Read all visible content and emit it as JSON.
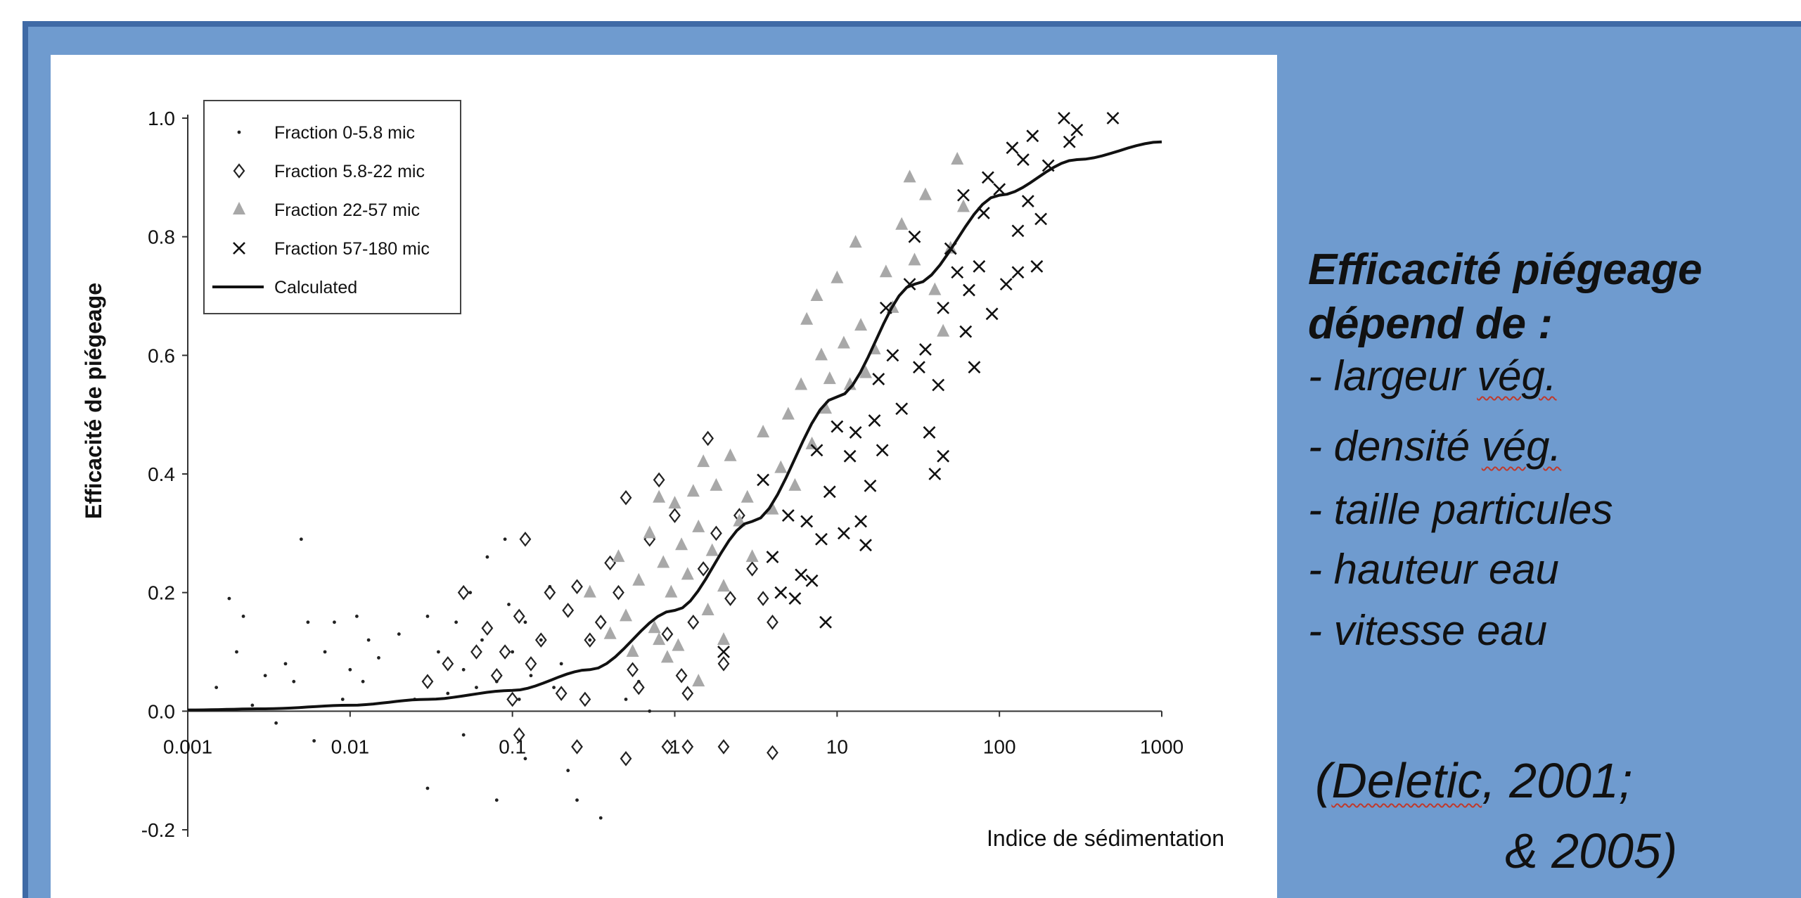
{
  "slide": {
    "heading_line1": "Efficacité piégeage",
    "heading_line2": "dépend de :",
    "bullets": [
      {
        "prefix": " - ",
        "word": "largeur",
        "marked": "vég."
      },
      {
        "prefix": " - ",
        "word": "densité",
        "marked": "vég."
      },
      {
        "prefix": " - ",
        "word": "taille particules",
        "marked": ""
      },
      {
        "prefix": " - ",
        "word": "hauteur eau",
        "marked": ""
      },
      {
        "prefix": " - ",
        "word": "vitesse eau",
        "marked": ""
      }
    ],
    "citation_open": "(",
    "citation_author": "Deletic",
    "citation_rest": ", 2001;",
    "citation_line2": "& 2005)",
    "spellcheck_color": "#c0392b",
    "background_color": "#6f9bcf",
    "frame_color": "#3f6aa6"
  },
  "chart_data": {
    "type": "scatter",
    "xlabel": "Indice de sédimentation",
    "ylabel": "Efficacité de piégeage",
    "xscale": "log",
    "xlim": [
      0.001,
      1000
    ],
    "ylim": [
      -0.2,
      1.0
    ],
    "xticks": [
      "0.001",
      "0.01",
      "0.1",
      "1",
      "10",
      "100",
      "1000"
    ],
    "yticks": [
      "-0.2",
      "0.0",
      "0.2",
      "0.4",
      "0.6",
      "0.8",
      "1.0"
    ],
    "grid": false,
    "legend_position": "top-left",
    "series": [
      {
        "name": "Fraction 0-5.8 mic",
        "marker": "dot",
        "color": "#222222",
        "points": [
          [
            0.0015,
            0.04
          ],
          [
            0.0018,
            0.19
          ],
          [
            0.002,
            0.1
          ],
          [
            0.0022,
            0.16
          ],
          [
            0.0025,
            0.01
          ],
          [
            0.003,
            0.06
          ],
          [
            0.0035,
            -0.02
          ],
          [
            0.004,
            0.08
          ],
          [
            0.0045,
            0.05
          ],
          [
            0.005,
            0.29
          ],
          [
            0.0055,
            0.15
          ],
          [
            0.006,
            -0.05
          ],
          [
            0.007,
            0.1
          ],
          [
            0.008,
            0.15
          ],
          [
            0.009,
            0.02
          ],
          [
            0.01,
            0.07
          ],
          [
            0.011,
            0.16
          ],
          [
            0.012,
            0.05
          ],
          [
            0.013,
            0.12
          ],
          [
            0.015,
            0.09
          ],
          [
            0.02,
            0.13
          ],
          [
            0.025,
            0.02
          ],
          [
            0.03,
            0.16
          ],
          [
            0.035,
            0.1
          ],
          [
            0.04,
            0.03
          ],
          [
            0.045,
            0.15
          ],
          [
            0.05,
            0.07
          ],
          [
            0.055,
            0.2
          ],
          [
            0.06,
            0.04
          ],
          [
            0.065,
            0.12
          ],
          [
            0.07,
            0.26
          ],
          [
            0.08,
            0.05
          ],
          [
            0.09,
            0.29
          ],
          [
            0.095,
            0.18
          ],
          [
            0.1,
            0.1
          ],
          [
            0.11,
            0.02
          ],
          [
            0.12,
            0.15
          ],
          [
            0.13,
            0.06
          ],
          [
            0.15,
            0.12
          ],
          [
            0.17,
            0.21
          ],
          [
            0.2,
            0.08
          ],
          [
            0.22,
            -0.1
          ],
          [
            0.25,
            -0.15
          ],
          [
            0.3,
            0.12
          ],
          [
            0.35,
            -0.18
          ],
          [
            0.5,
            0.02
          ],
          [
            0.6,
            0.05
          ],
          [
            0.7,
            0.0
          ],
          [
            0.03,
            -0.13
          ],
          [
            0.05,
            -0.04
          ],
          [
            0.08,
            -0.15
          ],
          [
            0.12,
            -0.08
          ],
          [
            0.18,
            0.04
          ]
        ]
      },
      {
        "name": "Fraction 5.8-22 mic",
        "marker": "diamond",
        "color": "#222222",
        "points": [
          [
            0.03,
            0.05
          ],
          [
            0.04,
            0.08
          ],
          [
            0.05,
            0.2
          ],
          [
            0.06,
            0.1
          ],
          [
            0.07,
            0.14
          ],
          [
            0.08,
            0.06
          ],
          [
            0.09,
            0.1
          ],
          [
            0.1,
            0.02
          ],
          [
            0.11,
            0.16
          ],
          [
            0.12,
            0.29
          ],
          [
            0.13,
            0.08
          ],
          [
            0.15,
            0.12
          ],
          [
            0.17,
            0.2
          ],
          [
            0.2,
            0.03
          ],
          [
            0.22,
            0.17
          ],
          [
            0.25,
            0.21
          ],
          [
            0.28,
            0.02
          ],
          [
            0.3,
            0.12
          ],
          [
            0.35,
            0.15
          ],
          [
            0.4,
            0.25
          ],
          [
            0.45,
            0.2
          ],
          [
            0.5,
            0.36
          ],
          [
            0.55,
            0.07
          ],
          [
            0.6,
            0.04
          ],
          [
            0.7,
            0.29
          ],
          [
            0.8,
            0.39
          ],
          [
            0.9,
            0.13
          ],
          [
            1.0,
            0.33
          ],
          [
            1.1,
            0.06
          ],
          [
            1.2,
            0.03
          ],
          [
            1.3,
            0.15
          ],
          [
            1.5,
            0.24
          ],
          [
            1.6,
            0.46
          ],
          [
            1.8,
            0.3
          ],
          [
            2.0,
            0.08
          ],
          [
            2.2,
            0.19
          ],
          [
            2.5,
            0.33
          ],
          [
            3.0,
            0.24
          ],
          [
            3.5,
            0.19
          ],
          [
            4.0,
            0.15
          ],
          [
            0.25,
            -0.06
          ],
          [
            0.5,
            -0.08
          ],
          [
            0.9,
            -0.06
          ],
          [
            1.2,
            -0.06
          ],
          [
            2.0,
            -0.06
          ],
          [
            4.0,
            -0.07
          ],
          [
            0.11,
            -0.04
          ]
        ]
      },
      {
        "name": "Fraction 22-57 mic",
        "marker": "triangle",
        "color": "#a8a8a8",
        "points": [
          [
            0.3,
            0.2
          ],
          [
            0.4,
            0.13
          ],
          [
            0.45,
            0.26
          ],
          [
            0.5,
            0.16
          ],
          [
            0.55,
            0.1
          ],
          [
            0.6,
            0.22
          ],
          [
            0.7,
            0.3
          ],
          [
            0.75,
            0.14
          ],
          [
            0.8,
            0.12
          ],
          [
            0.85,
            0.25
          ],
          [
            0.9,
            0.09
          ],
          [
            0.95,
            0.2
          ],
          [
            1.0,
            0.35
          ],
          [
            1.05,
            0.11
          ],
          [
            1.1,
            0.28
          ],
          [
            1.2,
            0.23
          ],
          [
            1.3,
            0.37
          ],
          [
            1.4,
            0.31
          ],
          [
            1.5,
            0.42
          ],
          [
            1.6,
            0.17
          ],
          [
            1.7,
            0.27
          ],
          [
            1.8,
            0.38
          ],
          [
            2.0,
            0.21
          ],
          [
            2.2,
            0.43
          ],
          [
            2.5,
            0.32
          ],
          [
            2.8,
            0.36
          ],
          [
            3.0,
            0.26
          ],
          [
            3.5,
            0.47
          ],
          [
            4.0,
            0.34
          ],
          [
            4.5,
            0.41
          ],
          [
            5.0,
            0.5
          ],
          [
            5.5,
            0.38
          ],
          [
            6.0,
            0.55
          ],
          [
            6.5,
            0.66
          ],
          [
            7.0,
            0.45
          ],
          [
            7.5,
            0.7
          ],
          [
            8.0,
            0.6
          ],
          [
            8.5,
            0.51
          ],
          [
            9.0,
            0.56
          ],
          [
            10.0,
            0.73
          ],
          [
            11.0,
            0.62
          ],
          [
            12.0,
            0.55
          ],
          [
            13.0,
            0.79
          ],
          [
            14.0,
            0.65
          ],
          [
            15.0,
            0.57
          ],
          [
            17.0,
            0.61
          ],
          [
            20.0,
            0.74
          ],
          [
            22.0,
            0.68
          ],
          [
            25.0,
            0.82
          ],
          [
            28.0,
            0.9
          ],
          [
            30.0,
            0.76
          ],
          [
            35.0,
            0.87
          ],
          [
            40.0,
            0.71
          ],
          [
            45.0,
            0.64
          ],
          [
            50.0,
            0.78
          ],
          [
            55.0,
            0.93
          ],
          [
            60.0,
            0.85
          ],
          [
            2.0,
            0.12
          ],
          [
            1.4,
            0.05
          ],
          [
            0.8,
            0.36
          ]
        ]
      },
      {
        "name": "Fraction 57-180 mic",
        "marker": "x",
        "color": "#111111",
        "points": [
          [
            2.0,
            0.1
          ],
          [
            3.5,
            0.39
          ],
          [
            4.0,
            0.26
          ],
          [
            4.5,
            0.2
          ],
          [
            5.0,
            0.33
          ],
          [
            5.5,
            0.19
          ],
          [
            6.0,
            0.23
          ],
          [
            6.5,
            0.32
          ],
          [
            7.0,
            0.22
          ],
          [
            7.5,
            0.44
          ],
          [
            8.0,
            0.29
          ],
          [
            8.5,
            0.15
          ],
          [
            9.0,
            0.37
          ],
          [
            10.0,
            0.48
          ],
          [
            11.0,
            0.3
          ],
          [
            12.0,
            0.43
          ],
          [
            13.0,
            0.47
          ],
          [
            14.0,
            0.32
          ],
          [
            15.0,
            0.28
          ],
          [
            16.0,
            0.38
          ],
          [
            17.0,
            0.49
          ],
          [
            18.0,
            0.56
          ],
          [
            19.0,
            0.44
          ],
          [
            20.0,
            0.68
          ],
          [
            22.0,
            0.6
          ],
          [
            25.0,
            0.51
          ],
          [
            28.0,
            0.72
          ],
          [
            30.0,
            0.8
          ],
          [
            32.0,
            0.58
          ],
          [
            35.0,
            0.61
          ],
          [
            37.0,
            0.47
          ],
          [
            40.0,
            0.4
          ],
          [
            42.0,
            0.55
          ],
          [
            45.0,
            0.68
          ],
          [
            50.0,
            0.78
          ],
          [
            55.0,
            0.74
          ],
          [
            60.0,
            0.87
          ],
          [
            62.0,
            0.64
          ],
          [
            65.0,
            0.71
          ],
          [
            70.0,
            0.58
          ],
          [
            75.0,
            0.75
          ],
          [
            80.0,
            0.84
          ],
          [
            85.0,
            0.9
          ],
          [
            90.0,
            0.67
          ],
          [
            100.0,
            0.88
          ],
          [
            110.0,
            0.72
          ],
          [
            120.0,
            0.95
          ],
          [
            130.0,
            0.81
          ],
          [
            140.0,
            0.93
          ],
          [
            150.0,
            0.86
          ],
          [
            160.0,
            0.97
          ],
          [
            170.0,
            0.75
          ],
          [
            180.0,
            0.83
          ],
          [
            200.0,
            0.92
          ],
          [
            250.0,
            1.0
          ],
          [
            270.0,
            0.96
          ],
          [
            300.0,
            0.98
          ],
          [
            500.0,
            1.0
          ],
          [
            45.0,
            0.43
          ],
          [
            130.0,
            0.74
          ]
        ]
      },
      {
        "name": "Calculated",
        "marker": "line",
        "color": "#111111",
        "points": [
          [
            0.001,
            0.002
          ],
          [
            0.003,
            0.004
          ],
          [
            0.01,
            0.01
          ],
          [
            0.03,
            0.02
          ],
          [
            0.1,
            0.035
          ],
          [
            0.3,
            0.07
          ],
          [
            1.0,
            0.17
          ],
          [
            3.0,
            0.32
          ],
          [
            10.0,
            0.53
          ],
          [
            30.0,
            0.72
          ],
          [
            100.0,
            0.87
          ],
          [
            300.0,
            0.93
          ],
          [
            1000.0,
            0.96
          ]
        ]
      }
    ]
  }
}
